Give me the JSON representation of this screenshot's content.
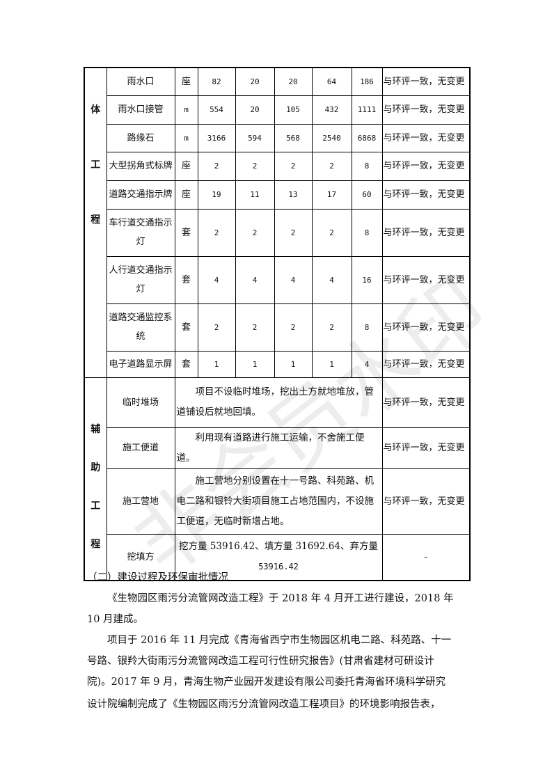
{
  "watermark": "非会员水印",
  "main_table": {
    "category1_chars": [
      "体",
      "工",
      "程"
    ],
    "rows": [
      {
        "name": "雨水口",
        "unit": "座",
        "v1": "82",
        "v2": "20",
        "v3": "20",
        "v4": "64",
        "total": "186",
        "note": "与环评一致，无变更"
      },
      {
        "name": "雨水口接管",
        "unit": "m",
        "v1": "554",
        "v2": "20",
        "v3": "105",
        "v4": "432",
        "total": "1111",
        "note": "与环评一致，无变更"
      },
      {
        "name": "路缘石",
        "unit": "m",
        "v1": "3166",
        "v2": "594",
        "v3": "568",
        "v4": "2540",
        "total": "6868",
        "note": "与环评一致，无变更"
      },
      {
        "name": "大型拐角式标牌",
        "unit": "座",
        "v1": "2",
        "v2": "2",
        "v3": "2",
        "v4": "2",
        "total": "8",
        "note": "与环评一致，无变更"
      },
      {
        "name": "道路交通指示牌",
        "unit": "座",
        "v1": "19",
        "v2": "11",
        "v3": "13",
        "v4": "17",
        "total": "60",
        "note": "与环评一致，无变更"
      },
      {
        "name": "车行道交通指示灯",
        "unit": "套",
        "v1": "2",
        "v2": "2",
        "v3": "2",
        "v4": "2",
        "total": "8",
        "note": "与环评一致，无变更"
      },
      {
        "name": "人行道交通指示灯",
        "unit": "套",
        "v1": "4",
        "v2": "4",
        "v3": "4",
        "v4": "4",
        "total": "16",
        "note": "与环评一致，无变更"
      },
      {
        "name": "道路交通监控系统",
        "unit": "套",
        "v1": "2",
        "v2": "2",
        "v3": "2",
        "v4": "2",
        "total": "8",
        "note": "与环评一致，无变更"
      },
      {
        "name": "电子道路显示屏",
        "unit": "套",
        "v1": "1",
        "v2": "1",
        "v3": "1",
        "v4": "1",
        "total": "4",
        "note": "与环评一致，无变更"
      }
    ],
    "category2_chars": [
      "辅",
      "助",
      "工",
      "程"
    ],
    "aux_rows": [
      {
        "name": "临时堆场",
        "desc": "项目不设临时堆场，挖出土方就地堆放，管道铺设后就地回填。",
        "note": "与环评一致，无变更"
      },
      {
        "name": "施工便道",
        "desc": "利用现有道路进行施工运输，不舍施工便道。",
        "note": "与环评一致，无变更"
      },
      {
        "name": "施工营地",
        "desc": "施工营地分别设置在十一号路、科苑路、机电二路和银铃大街项目施工占地范围内，不设施工便道，无临时新增占地。",
        "note": "与环评一致，无变更"
      },
      {
        "name": "挖填方",
        "desc_line1": "挖方量  53916.42、填方量 31692.64、弃方量",
        "desc_line2": "53916.42",
        "note": "-"
      }
    ]
  },
  "section": {
    "heading": "（二）建设过程及环保审批情况",
    "lines": [
      "《生物园区雨污分流管网改造工程》于 2018 年 4 月开工进行建设，2018 年",
      "10 月建成。",
      "项目于 2016 年 11 月完成《青海省西宁市生物园区机电二路、科苑路、十一",
      "号路、银羚大街雨污分流管网改造工程可行性研究报告》(甘肃省建材可研设计",
      "院)。2017 年 9 月，青海生物产业园开发建设有限公司委托青海省环境科学研究",
      "设计院编制完成了《生物园区雨污分流管网改造工程项目》的环境影响报告表，"
    ]
  }
}
